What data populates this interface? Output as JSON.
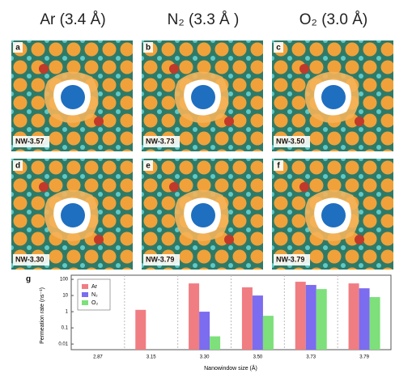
{
  "columns": [
    "Ar (3.4 Å)",
    "N₂ (3.3 Å )",
    "O₂ (3.0 Å)"
  ],
  "panels": [
    {
      "letter": "a",
      "label": "NW-3.57"
    },
    {
      "letter": "b",
      "label": "NW-3.73"
    },
    {
      "letter": "c",
      "label": "NW-3.50"
    },
    {
      "letter": "d",
      "label": "NW-3.30"
    },
    {
      "letter": "e",
      "label": "NW-3.79"
    },
    {
      "letter": "f",
      "label": "NW-3.79"
    }
  ],
  "chart_data": {
    "type": "bar",
    "letter": "g",
    "y_label": "Permeation rate (ns⁻¹)",
    "x_label": "Nanowindow size (Å)",
    "categories": [
      "2.87",
      "3.15",
      "3.30",
      "3.50",
      "3.73",
      "3.79"
    ],
    "series": [
      {
        "name": "Ar",
        "color": "#f07d82",
        "values": [
          null,
          1.3,
          56,
          32,
          71,
          56
        ]
      },
      {
        "name": "N₂",
        "color": "#7b6cf0",
        "values": [
          null,
          null,
          1.0,
          10,
          45,
          28
        ]
      },
      {
        "name": "O₂",
        "color": "#7de07a",
        "values": [
          null,
          null,
          0.03,
          0.56,
          25,
          8
        ]
      }
    ],
    "ylim": [
      0.0045,
      180
    ],
    "yticks": [
      100,
      10,
      1,
      0.1,
      0.01
    ],
    "log_y": true,
    "grid": false,
    "legend": "top-left"
  }
}
